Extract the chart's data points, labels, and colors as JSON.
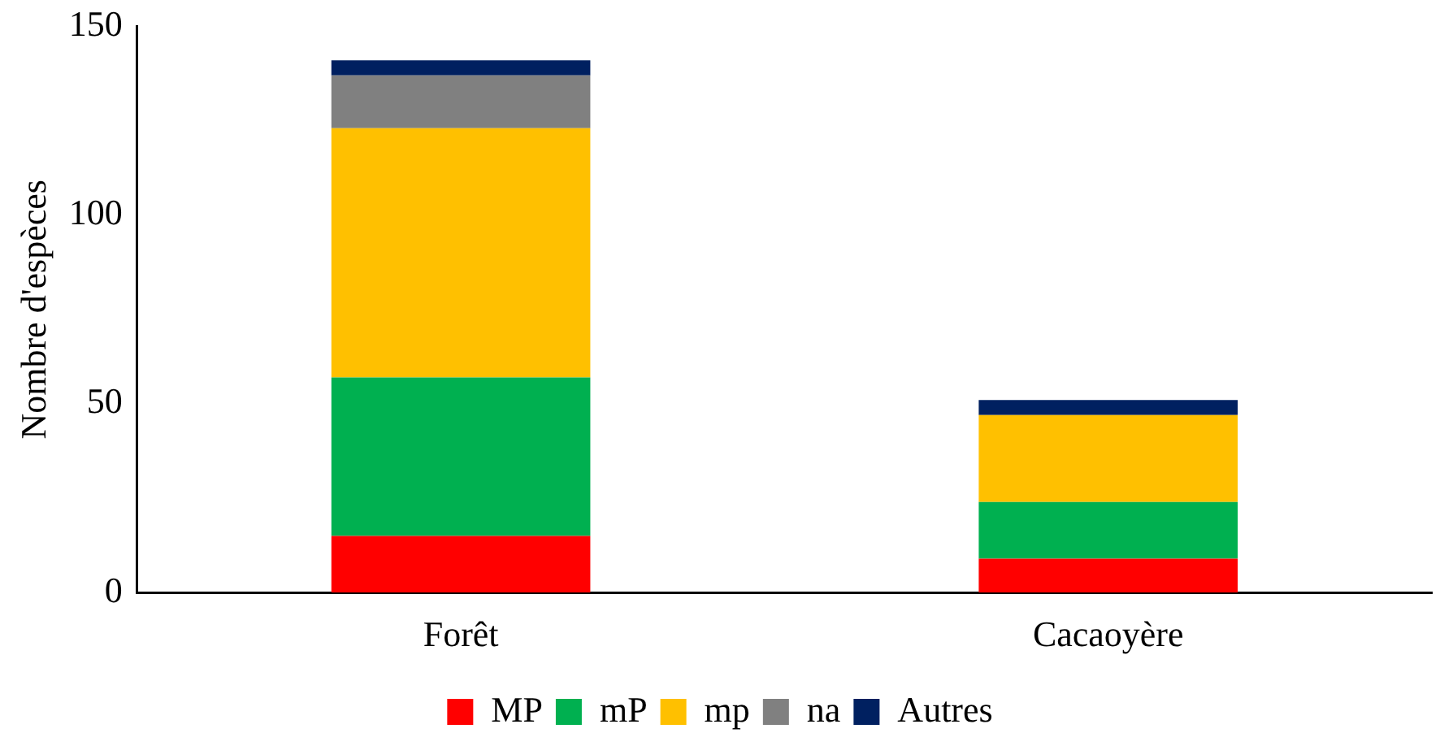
{
  "chart_data": {
    "type": "bar",
    "stacked": true,
    "ylabel": "Nombre d'espèces",
    "categories": [
      "Forêt",
      "Cacaoyère"
    ],
    "series": [
      {
        "name": "MP",
        "color": "#ff0000",
        "values": [
          15,
          9
        ]
      },
      {
        "name": "mP",
        "color": "#00b050",
        "values": [
          42,
          15
        ]
      },
      {
        "name": "mp",
        "color": "#ffc000",
        "values": [
          66,
          23
        ]
      },
      {
        "name": "na",
        "color": "#808080",
        "values": [
          14,
          0
        ]
      },
      {
        "name": "Autres",
        "color": "#002060",
        "values": [
          4,
          4
        ]
      }
    ],
    "ylim": [
      0,
      150
    ],
    "yticks": [
      0,
      50,
      100,
      150
    ],
    "grid": false,
    "legend": "bottom"
  }
}
